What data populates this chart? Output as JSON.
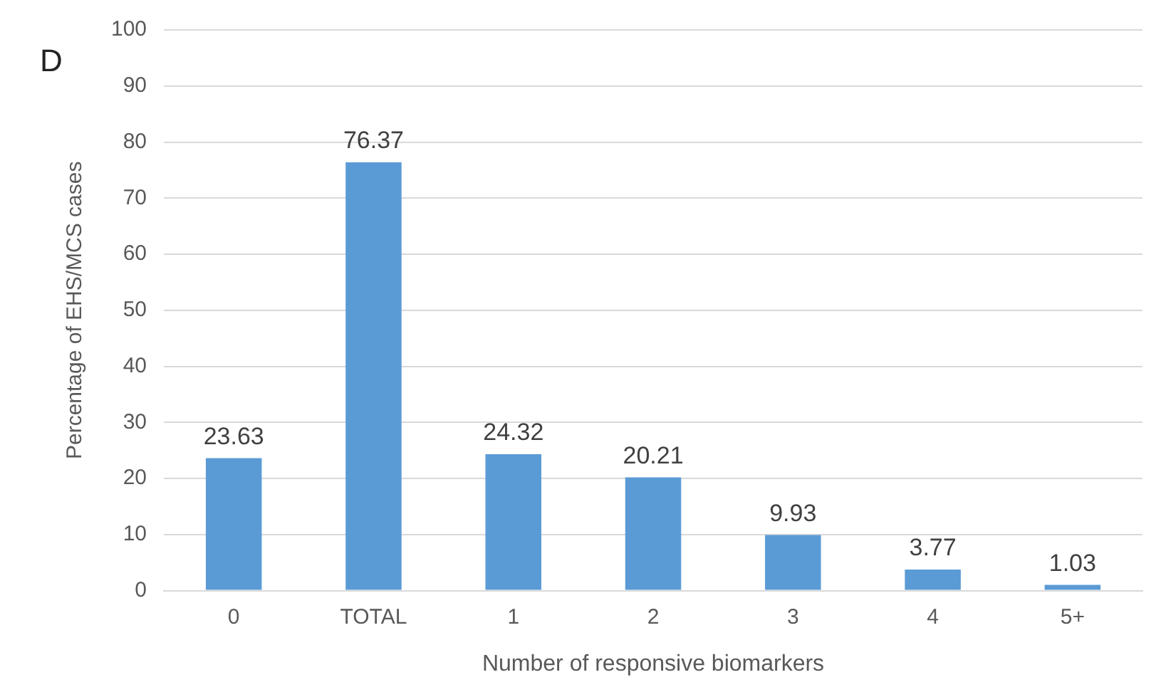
{
  "chart_data": {
    "type": "bar",
    "title": "D",
    "xlabel": "Number of responsive biomarkers",
    "ylabel": "Percentage of EHS/MCS cases",
    "categories": [
      "0",
      "TOTAL",
      "1",
      "2",
      "3",
      "4",
      "5+"
    ],
    "values": [
      23.63,
      76.37,
      24.32,
      20.21,
      9.93,
      3.77,
      1.03
    ],
    "color": "#5b9bd5",
    "ylim": [
      0,
      100
    ],
    "yticks": [
      0,
      10,
      20,
      30,
      40,
      50,
      60,
      70,
      80,
      90,
      100
    ],
    "grid": "y",
    "legend": false,
    "data_labels": true
  }
}
